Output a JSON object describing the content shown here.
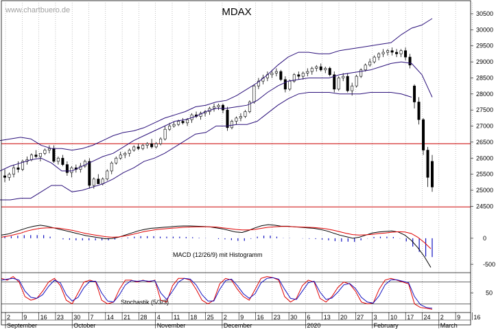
{
  "watermark": "www.chartbuero.de",
  "colors": {
    "candle_up": "#ffffff",
    "candle_down": "#000000",
    "bollinger": "#2a0f7a",
    "support_resistance": "#cc0000",
    "macd": "#000000",
    "signal": "#e00000",
    "histogram": "#1010c0",
    "stoch_k": "#e00000",
    "stoch_d": "#1010c0",
    "grid": "#9a9a9a"
  },
  "chart_data": [
    {
      "type": "candlestick",
      "title": "MDAX",
      "y_ticks": [
        24500,
        25000,
        25500,
        26000,
        26500,
        27000,
        27500,
        28000,
        28500,
        29000,
        29500,
        30000,
        30500
      ],
      "ylim": [
        24400,
        30800
      ],
      "horizontal_lines": [
        26450,
        24480
      ],
      "x_ticks": [
        "2",
        "9",
        "16",
        "23",
        "30",
        "7",
        "14",
        "21",
        "28",
        "4",
        "11",
        "18",
        "25",
        "2",
        "9",
        "16",
        "23",
        "30",
        "6",
        "13",
        "20",
        "27",
        "3",
        "10",
        "17",
        "24",
        "2",
        "9",
        "16"
      ],
      "months": [
        "September",
        "October",
        "November",
        "December",
        "2020",
        "February",
        "March"
      ],
      "ohlc": [
        [
          25450,
          25650,
          25250,
          25400
        ],
        [
          25400,
          25550,
          25300,
          25500
        ],
        [
          25500,
          25800,
          25400,
          25700
        ],
        [
          25700,
          25900,
          25550,
          25650
        ],
        [
          25650,
          25950,
          25600,
          25900
        ],
        [
          25900,
          26050,
          25800,
          25950
        ],
        [
          25950,
          26150,
          25900,
          26100
        ],
        [
          26100,
          26250,
          26000,
          26050
        ],
        [
          26050,
          26150,
          25900,
          26150
        ],
        [
          26150,
          26300,
          26100,
          26250
        ],
        [
          26250,
          26400,
          26150,
          26300
        ],
        [
          26300,
          26400,
          25850,
          25900
        ],
        [
          25900,
          26050,
          25800,
          26000
        ],
        [
          26000,
          26100,
          25750,
          25800
        ],
        [
          25800,
          25900,
          25450,
          25550
        ],
        [
          25550,
          25750,
          25400,
          25700
        ],
        [
          25700,
          25800,
          25550,
          25650
        ],
        [
          25650,
          25850,
          25550,
          25750
        ],
        [
          25750,
          25950,
          25700,
          25900
        ],
        [
          25900,
          26000,
          25050,
          25150
        ],
        [
          25150,
          25400,
          25050,
          25350
        ],
        [
          25350,
          25500,
          25200,
          25200
        ],
        [
          25200,
          25400,
          25150,
          25350
        ],
        [
          25350,
          25650,
          25300,
          25600
        ],
        [
          25600,
          25900,
          25500,
          25850
        ],
        [
          25850,
          26050,
          25800,
          26000
        ],
        [
          26000,
          26200,
          25950,
          26100
        ],
        [
          26100,
          26200,
          26000,
          26150
        ],
        [
          26150,
          26300,
          26050,
          26250
        ],
        [
          26250,
          26400,
          26200,
          26350
        ],
        [
          26350,
          26450,
          26250,
          26300
        ],
        [
          26300,
          26450,
          26250,
          26400
        ],
        [
          26400,
          26500,
          26300,
          26450
        ],
        [
          26450,
          26600,
          26300,
          26350
        ],
        [
          26350,
          26500,
          26300,
          26450
        ],
        [
          26450,
          26650,
          26400,
          26600
        ],
        [
          26600,
          27000,
          26550,
          26900
        ],
        [
          26900,
          27100,
          26850,
          27000
        ],
        [
          27000,
          27150,
          26950,
          27050
        ],
        [
          27050,
          27200,
          27000,
          27150
        ],
        [
          27150,
          27250,
          27050,
          27100
        ],
        [
          27100,
          27250,
          27000,
          27200
        ],
        [
          27200,
          27400,
          27100,
          27350
        ],
        [
          27350,
          27450,
          27250,
          27300
        ],
        [
          27300,
          27450,
          27200,
          27400
        ],
        [
          27400,
          27500,
          27300,
          27450
        ],
        [
          27450,
          27600,
          27350,
          27550
        ],
        [
          27550,
          27700,
          27450,
          27600
        ],
        [
          27600,
          27700,
          27500,
          27650
        ],
        [
          27650,
          27700,
          27400,
          27500
        ],
        [
          27500,
          27600,
          26850,
          26950
        ],
        [
          26950,
          27200,
          26900,
          27150
        ],
        [
          27150,
          27300,
          27050,
          27250
        ],
        [
          27250,
          27400,
          27150,
          27300
        ],
        [
          27300,
          27500,
          27250,
          27450
        ],
        [
          27450,
          27800,
          27400,
          27750
        ],
        [
          27750,
          28300,
          27700,
          28250
        ],
        [
          28250,
          28500,
          28150,
          28400
        ],
        [
          28400,
          28600,
          28300,
          28500
        ],
        [
          28500,
          28700,
          28400,
          28600
        ],
        [
          28600,
          28750,
          28500,
          28650
        ],
        [
          28650,
          28800,
          28550,
          28700
        ],
        [
          28700,
          28750,
          28400,
          28450
        ],
        [
          28450,
          28550,
          28050,
          28150
        ],
        [
          28150,
          28450,
          28100,
          28400
        ],
        [
          28400,
          28650,
          28350,
          28600
        ],
        [
          28600,
          28700,
          28450,
          28550
        ],
        [
          28550,
          28700,
          28450,
          28650
        ],
        [
          28650,
          28800,
          28550,
          28700
        ],
        [
          28700,
          28850,
          28600,
          28800
        ],
        [
          28800,
          28900,
          28700,
          28850
        ],
        [
          28850,
          28950,
          28700,
          28750
        ],
        [
          28750,
          28850,
          28650,
          28800
        ],
        [
          28800,
          28850,
          28550,
          28600
        ],
        [
          28600,
          28700,
          28050,
          28150
        ],
        [
          28150,
          28550,
          28100,
          28500
        ],
        [
          28500,
          28650,
          28400,
          28550
        ],
        [
          28550,
          28650,
          28050,
          28100
        ],
        [
          28100,
          28350,
          27950,
          28250
        ],
        [
          28250,
          28600,
          28200,
          28550
        ],
        [
          28550,
          28800,
          28500,
          28750
        ],
        [
          28750,
          28950,
          28700,
          28900
        ],
        [
          28900,
          29100,
          28850,
          29000
        ],
        [
          29000,
          29200,
          28950,
          29150
        ],
        [
          29150,
          29300,
          29050,
          29250
        ],
        [
          29250,
          29400,
          29150,
          29300
        ],
        [
          29300,
          29400,
          29200,
          29350
        ],
        [
          29350,
          29450,
          29200,
          29300
        ],
        [
          29300,
          29400,
          29150,
          29250
        ],
        [
          29250,
          29400,
          29150,
          29350
        ],
        [
          29350,
          29450,
          29050,
          29150
        ],
        [
          29150,
          29250,
          28800,
          28900
        ],
        [
          28250,
          28300,
          27550,
          27750
        ],
        [
          27750,
          27900,
          27050,
          27200
        ],
        [
          27200,
          27250,
          26100,
          26250
        ],
        [
          26250,
          26350,
          25100,
          25400
        ],
        [
          25900,
          26100,
          24950,
          25100
        ]
      ],
      "bollinger_upper": [
        26550,
        26600,
        26650,
        26600,
        26400,
        26300,
        26300,
        26250,
        26300,
        26400,
        26550,
        26700,
        26800,
        26850,
        26950,
        27100,
        27250,
        27350,
        27450,
        27600,
        27650,
        27750,
        27800,
        27950,
        28150,
        28350,
        28600,
        28900,
        29150,
        29300,
        29300,
        29250,
        29250,
        29350,
        29400,
        29450,
        29500,
        29550,
        29600,
        29850,
        30050,
        30150,
        30350
      ],
      "bollinger_mid": [
        25600,
        25750,
        25850,
        25950,
        26000,
        25850,
        25600,
        25600,
        25750,
        25900,
        26050,
        26150,
        26350,
        26550,
        26700,
        26850,
        27000,
        27150,
        27200,
        27300,
        27450,
        27550,
        27550,
        27600,
        27650,
        27800,
        28050,
        28250,
        28400,
        28450,
        28500,
        28500,
        28500,
        28600,
        28650,
        28700,
        28750,
        28850,
        28950,
        29000,
        28950,
        28600,
        27900
      ],
      "bollinger_lower": [
        24700,
        24700,
        24750,
        24750,
        24950,
        25150,
        25150,
        24950,
        25000,
        25100,
        25200,
        25350,
        25550,
        25700,
        25900,
        26000,
        26150,
        26350,
        26550,
        26750,
        26800,
        27000,
        27000,
        27050,
        27050,
        27150,
        27400,
        27650,
        27850,
        28000,
        28050,
        28050,
        28050,
        28000,
        28000,
        28000,
        28050,
        28050,
        28050,
        28000,
        27900,
        null,
        null
      ]
    },
    {
      "type": "line",
      "title": "MACD (12/26/9) mit Histogramm",
      "y_ticks": [
        0,
        -500
      ],
      "ylim": [
        -620,
        380
      ],
      "series": [
        {
          "name": "MACD",
          "values": [
            60,
            80,
            120,
            160,
            200,
            230,
            250,
            230,
            200,
            170,
            140,
            110,
            80,
            50,
            30,
            10,
            -10,
            -5,
            20,
            60,
            100,
            140,
            170,
            190,
            200,
            210,
            220,
            230,
            235,
            235,
            230,
            225,
            220,
            200,
            180,
            150,
            120,
            110,
            150,
            200,
            240,
            260,
            250,
            230,
            230,
            220,
            210,
            200,
            190,
            170,
            140,
            100,
            60,
            30,
            0,
            20,
            60,
            100,
            120,
            130,
            140,
            120,
            60,
            -40,
            -180,
            -350,
            -560
          ]
        },
        {
          "name": "Signal",
          "values": [
            20,
            40,
            70,
            100,
            140,
            170,
            190,
            200,
            200,
            190,
            170,
            150,
            120,
            90,
            70,
            50,
            30,
            20,
            25,
            45,
            70,
            100,
            130,
            150,
            170,
            180,
            190,
            200,
            210,
            215,
            220,
            220,
            220,
            215,
            200,
            185,
            170,
            160,
            160,
            170,
            190,
            210,
            220,
            225,
            225,
            220,
            215,
            210,
            205,
            195,
            180,
            155,
            125,
            95,
            70,
            60,
            65,
            75,
            90,
            100,
            115,
            125,
            120,
            90,
            20,
            -80,
            -200
          ]
        }
      ],
      "histogram": [
        40,
        40,
        50,
        60,
        60,
        60,
        60,
        30,
        0,
        -20,
        -30,
        -40,
        -40,
        -40,
        -40,
        -40,
        -40,
        -25,
        -5,
        15,
        30,
        40,
        40,
        40,
        30,
        30,
        30,
        30,
        25,
        20,
        10,
        5,
        0,
        -15,
        -20,
        -35,
        -50,
        -50,
        -10,
        30,
        50,
        50,
        30,
        5,
        5,
        0,
        -5,
        -10,
        -15,
        -25,
        -40,
        -55,
        -65,
        -65,
        -70,
        -40,
        -5,
        25,
        30,
        30,
        25,
        -5,
        -60,
        -160,
        -260,
        -350,
        -360
      ]
    },
    {
      "type": "line",
      "title": "Stochastik (5/3/3)",
      "y_ticks": [
        50
      ],
      "ylim": [
        0,
        100
      ],
      "horizontal_lines": [
        80,
        20
      ],
      "series": [
        {
          "name": "%K",
          "values": [
            90,
            85,
            95,
            80,
            40,
            30,
            35,
            55,
            80,
            90,
            70,
            30,
            20,
            50,
            80,
            85,
            80,
            30,
            20,
            25,
            60,
            85,
            85,
            80,
            85,
            80,
            85,
            30,
            25,
            70,
            90,
            90,
            85,
            60,
            30,
            20,
            30,
            75,
            90,
            85,
            60,
            40,
            30,
            60,
            90,
            95,
            92,
            85,
            40,
            25,
            35,
            70,
            85,
            80,
            35,
            25,
            40,
            65,
            80,
            75,
            55,
            25,
            20,
            22,
            60,
            85,
            90,
            85,
            80,
            75,
            20,
            10,
            8,
            5
          ]
        },
        {
          "name": "%D",
          "values": [
            85,
            88,
            90,
            85,
            55,
            38,
            35,
            45,
            68,
            85,
            78,
            45,
            28,
            38,
            65,
            82,
            82,
            50,
            28,
            25,
            45,
            72,
            84,
            82,
            84,
            82,
            84,
            50,
            32,
            55,
            80,
            90,
            88,
            72,
            45,
            28,
            28,
            60,
            84,
            88,
            70,
            48,
            35,
            48,
            78,
            90,
            92,
            88,
            60,
            35,
            32,
            55,
            78,
            82,
            52,
            32,
            36,
            52,
            72,
            76,
            62,
            38,
            25,
            22,
            42,
            72,
            86,
            86,
            82,
            78,
            40,
            18,
            10,
            8
          ]
        }
      ]
    }
  ]
}
